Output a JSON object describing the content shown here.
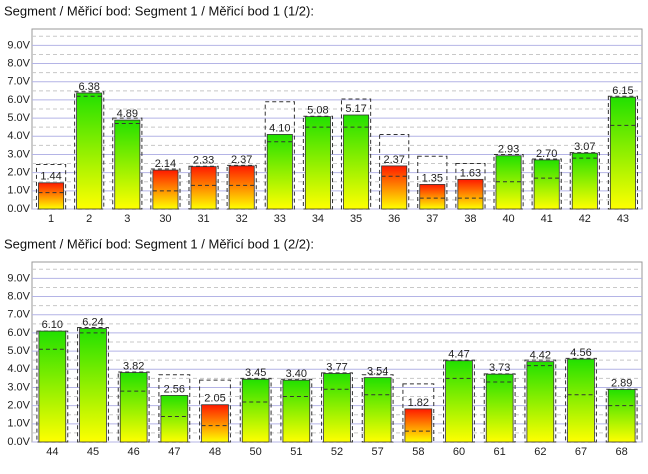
{
  "chart_data": [
    {
      "type": "bar",
      "title": "Segment / Měřicí bod: Segment 1 / Měřicí bod 1 (1/2):",
      "categories": [
        "1",
        "2",
        "3",
        "30",
        "31",
        "32",
        "33",
        "34",
        "35",
        "36",
        "37",
        "38",
        "40",
        "41",
        "42",
        "43"
      ],
      "values": [
        1.44,
        6.38,
        4.89,
        2.14,
        2.33,
        2.37,
        4.1,
        5.08,
        5.17,
        2.37,
        1.35,
        1.63,
        2.93,
        2.7,
        3.07,
        6.15
      ],
      "value_labels": [
        "1.44",
        "6.38",
        "4.89",
        "2.14",
        "2.33",
        "2.37",
        "4.10",
        "5.08",
        "5.17",
        "2.37",
        "1.35",
        "1.63",
        "2.93",
        "2.70",
        "3.07",
        "6.15"
      ],
      "upper": [
        2.45,
        6.45,
        5.0,
        2.2,
        2.35,
        2.4,
        5.9,
        5.1,
        6.05,
        4.1,
        2.9,
        2.5,
        3.0,
        2.75,
        3.1,
        6.2
      ],
      "lower": [
        0.9,
        6.2,
        4.7,
        1.0,
        1.3,
        1.3,
        3.7,
        4.5,
        4.5,
        1.8,
        0.6,
        0.6,
        1.5,
        1.7,
        2.8,
        4.6
      ],
      "colors": [
        "#ff1a00",
        "#22e000",
        "#22e000",
        "#ff1a00",
        "#ff1a00",
        "#ff1a00",
        "#22e000",
        "#22e000",
        "#22e000",
        "#ff1a00",
        "#ff1a00",
        "#ff1a00",
        "#22e000",
        "#22e000",
        "#22e000",
        "#22e000"
      ],
      "gradient_bottom": "#ffff00",
      "ylim": [
        0,
        9.9
      ],
      "yticks": [
        {
          "value": 0,
          "label": "0.0V"
        },
        {
          "value": 1,
          "label": "1.0V"
        },
        {
          "value": 2,
          "label": "2.0V"
        },
        {
          "value": 3,
          "label": "3.0V"
        },
        {
          "value": 4,
          "label": "4.0V"
        },
        {
          "value": 5,
          "label": "5.0V"
        },
        {
          "value": 6,
          "label": "6.0V"
        },
        {
          "value": 7,
          "label": "7.0V"
        },
        {
          "value": 8,
          "label": "8.0V"
        },
        {
          "value": 9,
          "label": "9.0V"
        }
      ],
      "minor_yticks": [
        0.5,
        1.5,
        2.5,
        3.5,
        4.5,
        5.5,
        6.5,
        7.5,
        8.5,
        9.5
      ],
      "grid": true
    },
    {
      "type": "bar",
      "title": "Segment / Měřicí bod: Segment 1 / Měřicí bod 1 (2/2):",
      "categories": [
        "44",
        "45",
        "46",
        "47",
        "48",
        "50",
        "51",
        "52",
        "57",
        "58",
        "60",
        "61",
        "62",
        "67",
        "68"
      ],
      "values": [
        6.1,
        6.24,
        3.82,
        2.56,
        2.05,
        3.45,
        3.4,
        3.77,
        3.54,
        1.82,
        4.47,
        3.73,
        4.42,
        4.56,
        2.89
      ],
      "value_labels": [
        "6.10",
        "6.24",
        "3.82",
        "2.56",
        "2.05",
        "3.45",
        "3.40",
        "3.77",
        "3.54",
        "1.82",
        "4.47",
        "3.73",
        "4.42",
        "4.56",
        "2.89"
      ],
      "upper": [
        6.1,
        6.3,
        3.85,
        3.7,
        3.4,
        3.5,
        3.45,
        3.8,
        3.7,
        3.2,
        4.5,
        3.75,
        4.5,
        4.6,
        2.9
      ],
      "lower": [
        5.1,
        6.0,
        2.8,
        1.4,
        0.9,
        2.2,
        2.5,
        2.9,
        2.6,
        0.6,
        3.5,
        3.3,
        4.2,
        2.6,
        2.0
      ],
      "colors": [
        "#22e000",
        "#22e000",
        "#22e000",
        "#22e000",
        "#ff1a00",
        "#22e000",
        "#22e000",
        "#22e000",
        "#22e000",
        "#ff1a00",
        "#22e000",
        "#22e000",
        "#22e000",
        "#22e000",
        "#22e000"
      ],
      "gradient_bottom": "#ffff00",
      "ylim": [
        0,
        9.9
      ],
      "yticks": [
        {
          "value": 0,
          "label": "0.0V"
        },
        {
          "value": 1,
          "label": "1.0V"
        },
        {
          "value": 2,
          "label": "2.0V"
        },
        {
          "value": 3,
          "label": "3.0V"
        },
        {
          "value": 4,
          "label": "4.0V"
        },
        {
          "value": 5,
          "label": "5.0V"
        },
        {
          "value": 6,
          "label": "6.0V"
        },
        {
          "value": 7,
          "label": "7.0V"
        },
        {
          "value": 8,
          "label": "8.0V"
        },
        {
          "value": 9,
          "label": "9.0V"
        }
      ],
      "minor_yticks": [
        0.5,
        1.5,
        2.5,
        3.5,
        4.5,
        5.5,
        6.5,
        7.5,
        8.5,
        9.5
      ],
      "grid": true
    }
  ]
}
